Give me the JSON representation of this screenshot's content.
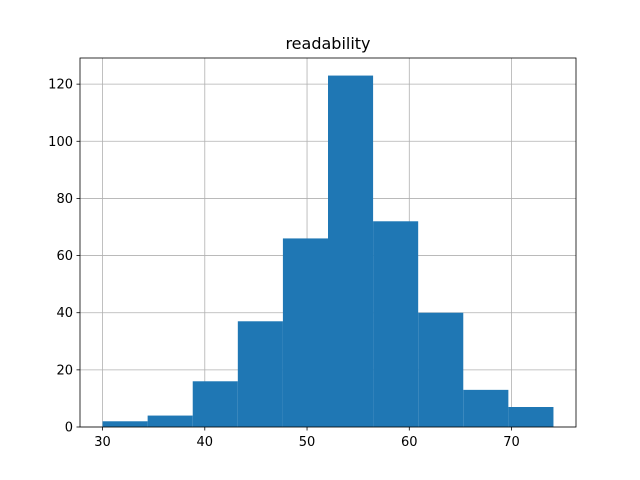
{
  "chart_data": {
    "type": "histogram",
    "title": "readability",
    "bins": [
      30.0,
      34.41,
      38.82,
      43.23,
      47.64,
      52.05,
      56.46,
      60.87,
      65.28,
      69.69,
      74.1
    ],
    "values": [
      2,
      4,
      16,
      37,
      66,
      123,
      72,
      40,
      13,
      7
    ],
    "color": "#1f77b4",
    "xlim": [
      27.795,
      76.305
    ],
    "xticks": [
      30,
      40,
      50,
      60,
      70
    ],
    "ylim": [
      0,
      129.15
    ],
    "yticks": [
      0,
      20,
      40,
      60,
      80,
      100,
      120
    ],
    "grid": true
  }
}
